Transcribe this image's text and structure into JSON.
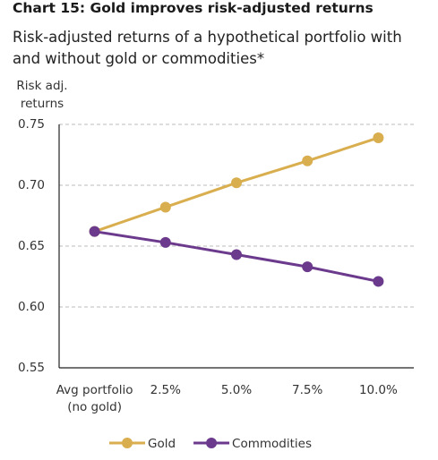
{
  "chart_data": {
    "type": "line",
    "title": "Chart 15: Gold improves risk-adjusted returns",
    "subtitle": "Risk-adjusted returns of a hypothetical portfolio with and without gold or commodities*",
    "y_label": "Risk adj. returns",
    "categories": [
      "Avg portfolio (no gold)",
      "2.5%",
      "5.0%",
      "7.5%",
      "10.0%"
    ],
    "series": [
      {
        "name": "Gold",
        "color": "#d9ae4f",
        "values": [
          0.662,
          0.682,
          0.702,
          0.72,
          0.739
        ]
      },
      {
        "name": "Commodities",
        "color": "#6b3a8c",
        "values": [
          0.662,
          0.653,
          0.643,
          0.633,
          0.621
        ]
      }
    ],
    "ylim": [
      0.55,
      0.75
    ],
    "yticks": [
      {
        "value": 0.55,
        "label": "0.55"
      },
      {
        "value": 0.6,
        "label": "0.60"
      },
      {
        "value": 0.65,
        "label": "0.65"
      },
      {
        "value": 0.7,
        "label": "0.70"
      },
      {
        "value": 0.75,
        "label": "0.75"
      }
    ],
    "grid": true
  }
}
